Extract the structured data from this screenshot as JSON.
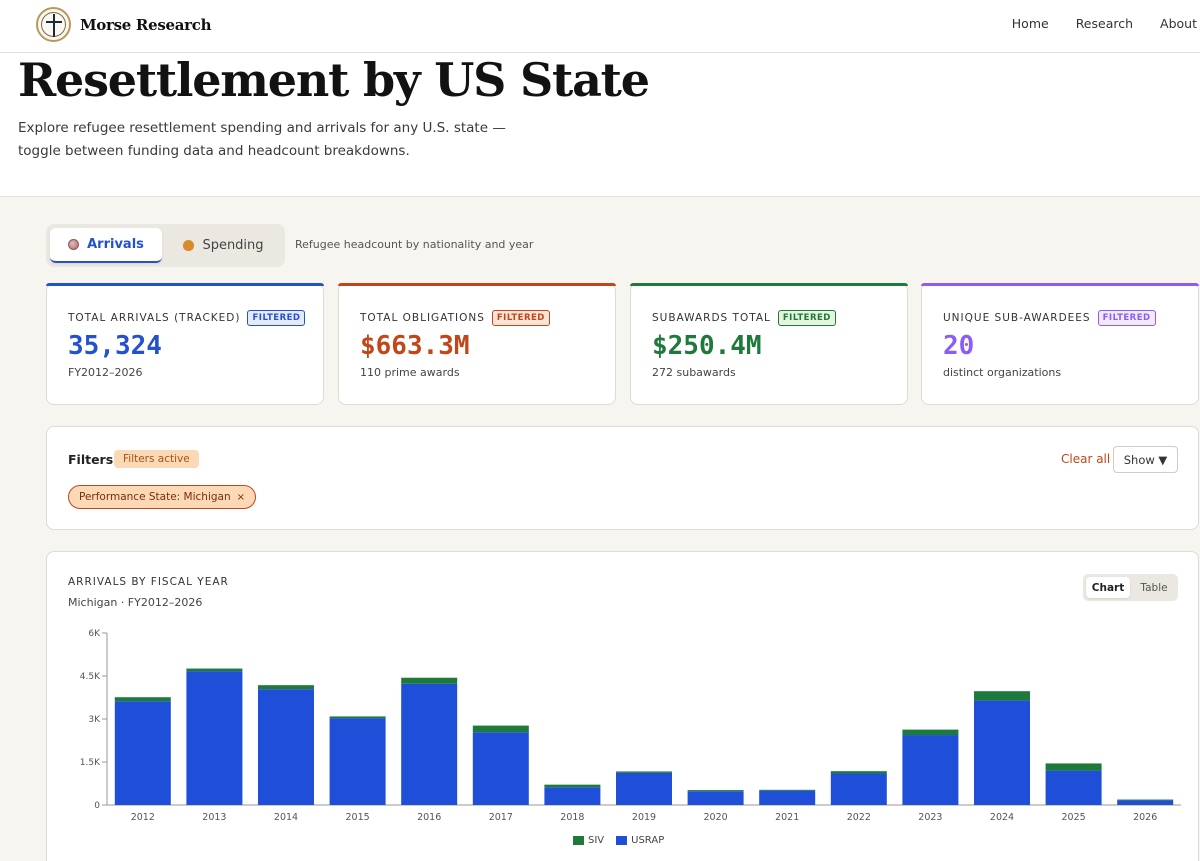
{
  "brand": {
    "name": "Morse Research"
  },
  "nav": {
    "home": "Home",
    "research": "Research",
    "about": "About"
  },
  "hero": {
    "title": "Resettlement by US State",
    "description": "Explore refugee resettlement spending and arrivals for any U.S. state — toggle between funding data and headcount breakdowns."
  },
  "tabs": {
    "arrivals": "Arrivals",
    "spending": "Spending",
    "description": "Refugee headcount by nationality and year"
  },
  "cards": [
    {
      "label": "TOTAL ARRIVALS (TRACKED)",
      "badge": "FILTERED",
      "value": "35,324",
      "sub": "FY2012–2026",
      "color": "#2452cc",
      "badge_bg": "#e4e9fb"
    },
    {
      "label": "TOTAL OBLIGATIONS",
      "badge": "FILTERED",
      "value": "$663.3M",
      "sub": "110 prime awards",
      "color": "#c2461a",
      "badge_bg": "#fde4d6"
    },
    {
      "label": "SUBAWARDS TOTAL",
      "badge": "FILTERED",
      "value": "$250.4M",
      "sub": "272 subawards",
      "color": "#1e7a3a",
      "badge_bg": "#e6f3df"
    },
    {
      "label": "UNIQUE SUB-AWARDEES",
      "badge": "FILTERED",
      "value": "20",
      "sub": "distinct organizations",
      "color": "#8b5cf6",
      "badge_bg": "#f1eafd"
    }
  ],
  "filters": {
    "title": "Filters",
    "active_label": "Filters active",
    "clear_label": "Clear all",
    "show_label": "Show ▼",
    "chip_label": "Performance State: Michigan",
    "chip_close": "×"
  },
  "chart": {
    "title": "ARRIVALS BY FISCAL YEAR",
    "subtitle": "Michigan · FY2012–2026",
    "toggle_chart": "Chart",
    "toggle_table": "Table"
  },
  "chart_data": {
    "type": "bar",
    "stacked": true,
    "title": "ARRIVALS BY FISCAL YEAR",
    "subtitle": "Michigan · FY2012–2026",
    "categories": [
      "2012",
      "2013",
      "2014",
      "2015",
      "2016",
      "2017",
      "2018",
      "2019",
      "2020",
      "2021",
      "2022",
      "2023",
      "2024",
      "2025",
      "2026"
    ],
    "series": [
      {
        "name": "USRAP",
        "color": "#1f4fd8",
        "values": [
          3620,
          4670,
          4040,
          3030,
          4230,
          2540,
          620,
          1120,
          480,
          500,
          1100,
          2440,
          3650,
          1200,
          160
        ]
      },
      {
        "name": "SIV",
        "color": "#1e7a3a",
        "values": [
          140,
          90,
          140,
          60,
          210,
          230,
          90,
          50,
          40,
          30,
          80,
          190,
          320,
          250,
          30
        ]
      }
    ],
    "ylim": [
      0,
      6000
    ],
    "yticks": [
      0,
      1500,
      3000,
      4500,
      6000
    ],
    "ytick_labels": [
      "0",
      "1.5K",
      "3K",
      "4.5K",
      "6K"
    ],
    "legend": [
      "SIV",
      "USRAP"
    ],
    "xlabel": "",
    "ylabel": ""
  }
}
